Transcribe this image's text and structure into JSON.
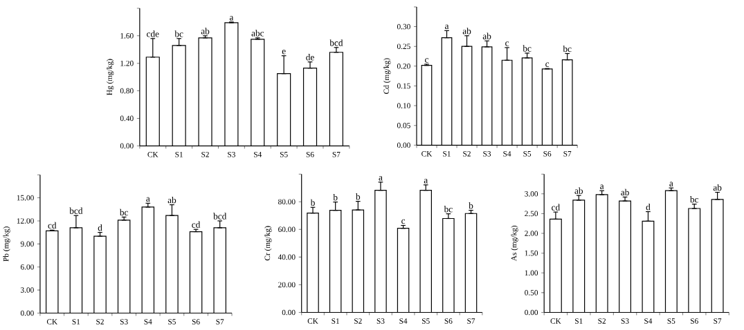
{
  "chart_data": [
    {
      "type": "bar",
      "ylabel": "Hg (mg/kg)",
      "categories": [
        "CK",
        "S1",
        "S2",
        "S3",
        "S4",
        "S5",
        "S6",
        "S7"
      ],
      "color": "#ffffff",
      "values": [
        1.29,
        1.46,
        1.57,
        1.79,
        1.55,
        1.05,
        1.13,
        1.36
      ],
      "errors": [
        [
          1.29,
          1.56
        ],
        [
          1.46,
          1.56
        ],
        [
          1.57,
          1.6
        ],
        [
          1.79,
          1.8
        ],
        [
          1.55,
          1.57
        ],
        [
          1.05,
          1.31
        ],
        [
          1.13,
          1.22
        ],
        [
          1.36,
          1.43
        ]
      ],
      "ylim": [
        0,
        2.0
      ],
      "yticks": [
        {
          "value": 0,
          "label": "0.00"
        },
        {
          "value": 0.4,
          "label": "0.40"
        },
        {
          "value": 0.8,
          "label": "0.80"
        },
        {
          "value": 1.2,
          "label": "1.20"
        },
        {
          "value": 1.6,
          "label": "1.60"
        },
        {
          "value": 2.0,
          "label": null
        }
      ],
      "annotations": [
        {
          "text": "cde",
          "x": "CK",
          "y": 1.56
        },
        {
          "text": "bc",
          "x": "S1",
          "y": 1.56
        },
        {
          "text": "ab",
          "x": "S2",
          "y": 1.6
        },
        {
          "text": "a",
          "x": "S3",
          "y": 1.8
        },
        {
          "text": "abc",
          "x": "S4",
          "y": 1.57
        },
        {
          "text": "e",
          "x": "S5",
          "y": 1.31
        },
        {
          "text": "de",
          "x": "S6",
          "y": 1.22
        },
        {
          "text": "bcd",
          "x": "S7",
          "y": 1.43
        }
      ]
    },
    {
      "type": "bar",
      "ylabel": "Cd (mg/kg)",
      "categories": [
        "CK",
        "S1",
        "S2",
        "S3",
        "S4",
        "S5",
        "S6",
        "S7"
      ],
      "color": "#ffffff",
      "values": [
        0.202,
        0.272,
        0.25,
        0.249,
        0.215,
        0.221,
        0.193,
        0.216
      ],
      "errors": [
        [
          0.202,
          0.205
        ],
        [
          0.272,
          0.29
        ],
        [
          0.25,
          0.277
        ],
        [
          0.249,
          0.264
        ],
        [
          0.215,
          0.247
        ],
        [
          0.221,
          0.233
        ],
        [
          0.193,
          0.194
        ],
        [
          0.216,
          0.232
        ]
      ],
      "ylim": [
        0,
        0.35
      ],
      "yticks": [
        {
          "value": 0,
          "label": "0.00"
        },
        {
          "value": 0.05,
          "label": "0.05"
        },
        {
          "value": 0.1,
          "label": "0.10"
        },
        {
          "value": 0.15,
          "label": "0.15"
        },
        {
          "value": 0.2,
          "label": "0.20"
        },
        {
          "value": 0.25,
          "label": "0.25"
        },
        {
          "value": 0.3,
          "label": "0.30"
        },
        {
          "value": 0.35,
          "label": null
        }
      ],
      "annotations": [
        {
          "text": "c",
          "x": "CK",
          "y": 0.205
        },
        {
          "text": "a",
          "x": "S1",
          "y": 0.29
        },
        {
          "text": "ab",
          "x": "S2",
          "y": 0.277
        },
        {
          "text": "ab",
          "x": "S3",
          "y": 0.264
        },
        {
          "text": "c",
          "x": "S4",
          "y": 0.247
        },
        {
          "text": "bc",
          "x": "S5",
          "y": 0.233
        },
        {
          "text": "c",
          "x": "S6",
          "y": 0.194
        },
        {
          "text": "bc",
          "x": "S7",
          "y": 0.232
        }
      ]
    },
    {
      "type": "bar",
      "ylabel": "Pb (mg/kg)",
      "categories": [
        "CK",
        "S1",
        "S2",
        "S3",
        "S4",
        "S5",
        "S6",
        "S7"
      ],
      "color": "#ffffff",
      "values": [
        10.7,
        11.1,
        10.0,
        12.1,
        13.8,
        12.7,
        10.6,
        11.1
      ],
      "errors": [
        [
          10.7,
          10.8
        ],
        [
          11.1,
          12.7
        ],
        [
          10.0,
          10.5
        ],
        [
          12.1,
          12.5
        ],
        [
          13.8,
          14.3
        ],
        [
          12.7,
          14.1
        ],
        [
          10.6,
          10.9
        ],
        [
          11.1,
          12.0
        ]
      ],
      "ylim": [
        0,
        18
      ],
      "yticks": [
        {
          "value": 0,
          "label": "0.00"
        },
        {
          "value": 3,
          "label": "3.00"
        },
        {
          "value": 6,
          "label": "6.00"
        },
        {
          "value": 9,
          "label": "9.00"
        },
        {
          "value": 12,
          "label": "12.00"
        },
        {
          "value": 15,
          "label": "15.00"
        },
        {
          "value": 18,
          "label": null
        }
      ],
      "annotations": [
        {
          "text": "cd",
          "x": "CK",
          "y": 10.8
        },
        {
          "text": "bcd",
          "x": "S1",
          "y": 12.7
        },
        {
          "text": "d",
          "x": "S2",
          "y": 10.5
        },
        {
          "text": "bc",
          "x": "S3",
          "y": 12.5
        },
        {
          "text": "a",
          "x": "S4",
          "y": 14.3
        },
        {
          "text": "ab",
          "x": "S5",
          "y": 14.1
        },
        {
          "text": "cd",
          "x": "S6",
          "y": 10.9
        },
        {
          "text": "bcd",
          "x": "S7",
          "y": 12.0
        }
      ]
    },
    {
      "type": "bar",
      "ylabel": "Cr (mg/kg)",
      "categories": [
        "CK",
        "S1",
        "S2",
        "S3",
        "S4",
        "S5",
        "S6",
        "S7"
      ],
      "color": "#ffffff",
      "values": [
        71.8,
        73.8,
        74.1,
        88.3,
        60.8,
        88.3,
        67.9,
        71.5
      ],
      "errors": [
        [
          71.8,
          76.0
        ],
        [
          73.8,
          79.8
        ],
        [
          74.1,
          80.3
        ],
        [
          88.3,
          94.2
        ],
        [
          60.8,
          62.9
        ],
        [
          88.3,
          92.2
        ],
        [
          67.9,
          71.3
        ],
        [
          71.5,
          73.8
        ]
      ],
      "ylim": [
        0,
        100
      ],
      "yticks": [
        {
          "value": 0,
          "label": "0.00"
        },
        {
          "value": 20,
          "label": "20.00"
        },
        {
          "value": 40,
          "label": "40.00"
        },
        {
          "value": 60,
          "label": "60.00"
        },
        {
          "value": 80,
          "label": "80.00"
        },
        {
          "value": 100,
          "label": null
        }
      ],
      "annotations": [
        {
          "text": "b",
          "x": "CK",
          "y": 76.0
        },
        {
          "text": "b",
          "x": "S1",
          "y": 79.8
        },
        {
          "text": "b",
          "x": "S2",
          "y": 80.3
        },
        {
          "text": "a",
          "x": "S3",
          "y": 94.2
        },
        {
          "text": "c",
          "x": "S4",
          "y": 62.9
        },
        {
          "text": "a",
          "x": "S5",
          "y": 92.2
        },
        {
          "text": "bc",
          "x": "S6",
          "y": 71.3
        },
        {
          "text": "b",
          "x": "S7",
          "y": 73.8
        }
      ]
    },
    {
      "type": "bar",
      "ylabel": "As (mg/kg)",
      "categories": [
        "CK",
        "S1",
        "S2",
        "S3",
        "S4",
        "S5",
        "S6",
        "S7"
      ],
      "color": "#ffffff",
      "values": [
        2.36,
        2.84,
        2.98,
        2.82,
        2.31,
        3.08,
        2.63,
        2.86
      ],
      "errors": [
        [
          2.36,
          2.54
        ],
        [
          2.84,
          2.96
        ],
        [
          2.98,
          3.08
        ],
        [
          2.82,
          2.92
        ],
        [
          2.31,
          2.55
        ],
        [
          3.08,
          3.15
        ],
        [
          2.63,
          2.74
        ],
        [
          2.86,
          3.04
        ]
      ],
      "ylim": [
        0,
        3.5
      ],
      "yticks": [
        {
          "value": 0,
          "label": "0.00"
        },
        {
          "value": 0.5,
          "label": "0.50"
        },
        {
          "value": 1.0,
          "label": "1.00"
        },
        {
          "value": 1.5,
          "label": "1.50"
        },
        {
          "value": 2.0,
          "label": "2.00"
        },
        {
          "value": 2.5,
          "label": "2.50"
        },
        {
          "value": 3.0,
          "label": "3.00"
        },
        {
          "value": 3.5,
          "label": null
        }
      ],
      "annotations": [
        {
          "text": "cd",
          "x": "CK",
          "y": 2.54
        },
        {
          "text": "ab",
          "x": "S1",
          "y": 2.96
        },
        {
          "text": "a",
          "x": "S2",
          "y": 3.08
        },
        {
          "text": "ab",
          "x": "S3",
          "y": 2.92
        },
        {
          "text": "d",
          "x": "S4",
          "y": 2.55
        },
        {
          "text": "a",
          "x": "S5",
          "y": 3.15
        },
        {
          "text": "bc",
          "x": "S6",
          "y": 2.74
        },
        {
          "text": "ab",
          "x": "S7",
          "y": 3.04
        }
      ]
    }
  ]
}
